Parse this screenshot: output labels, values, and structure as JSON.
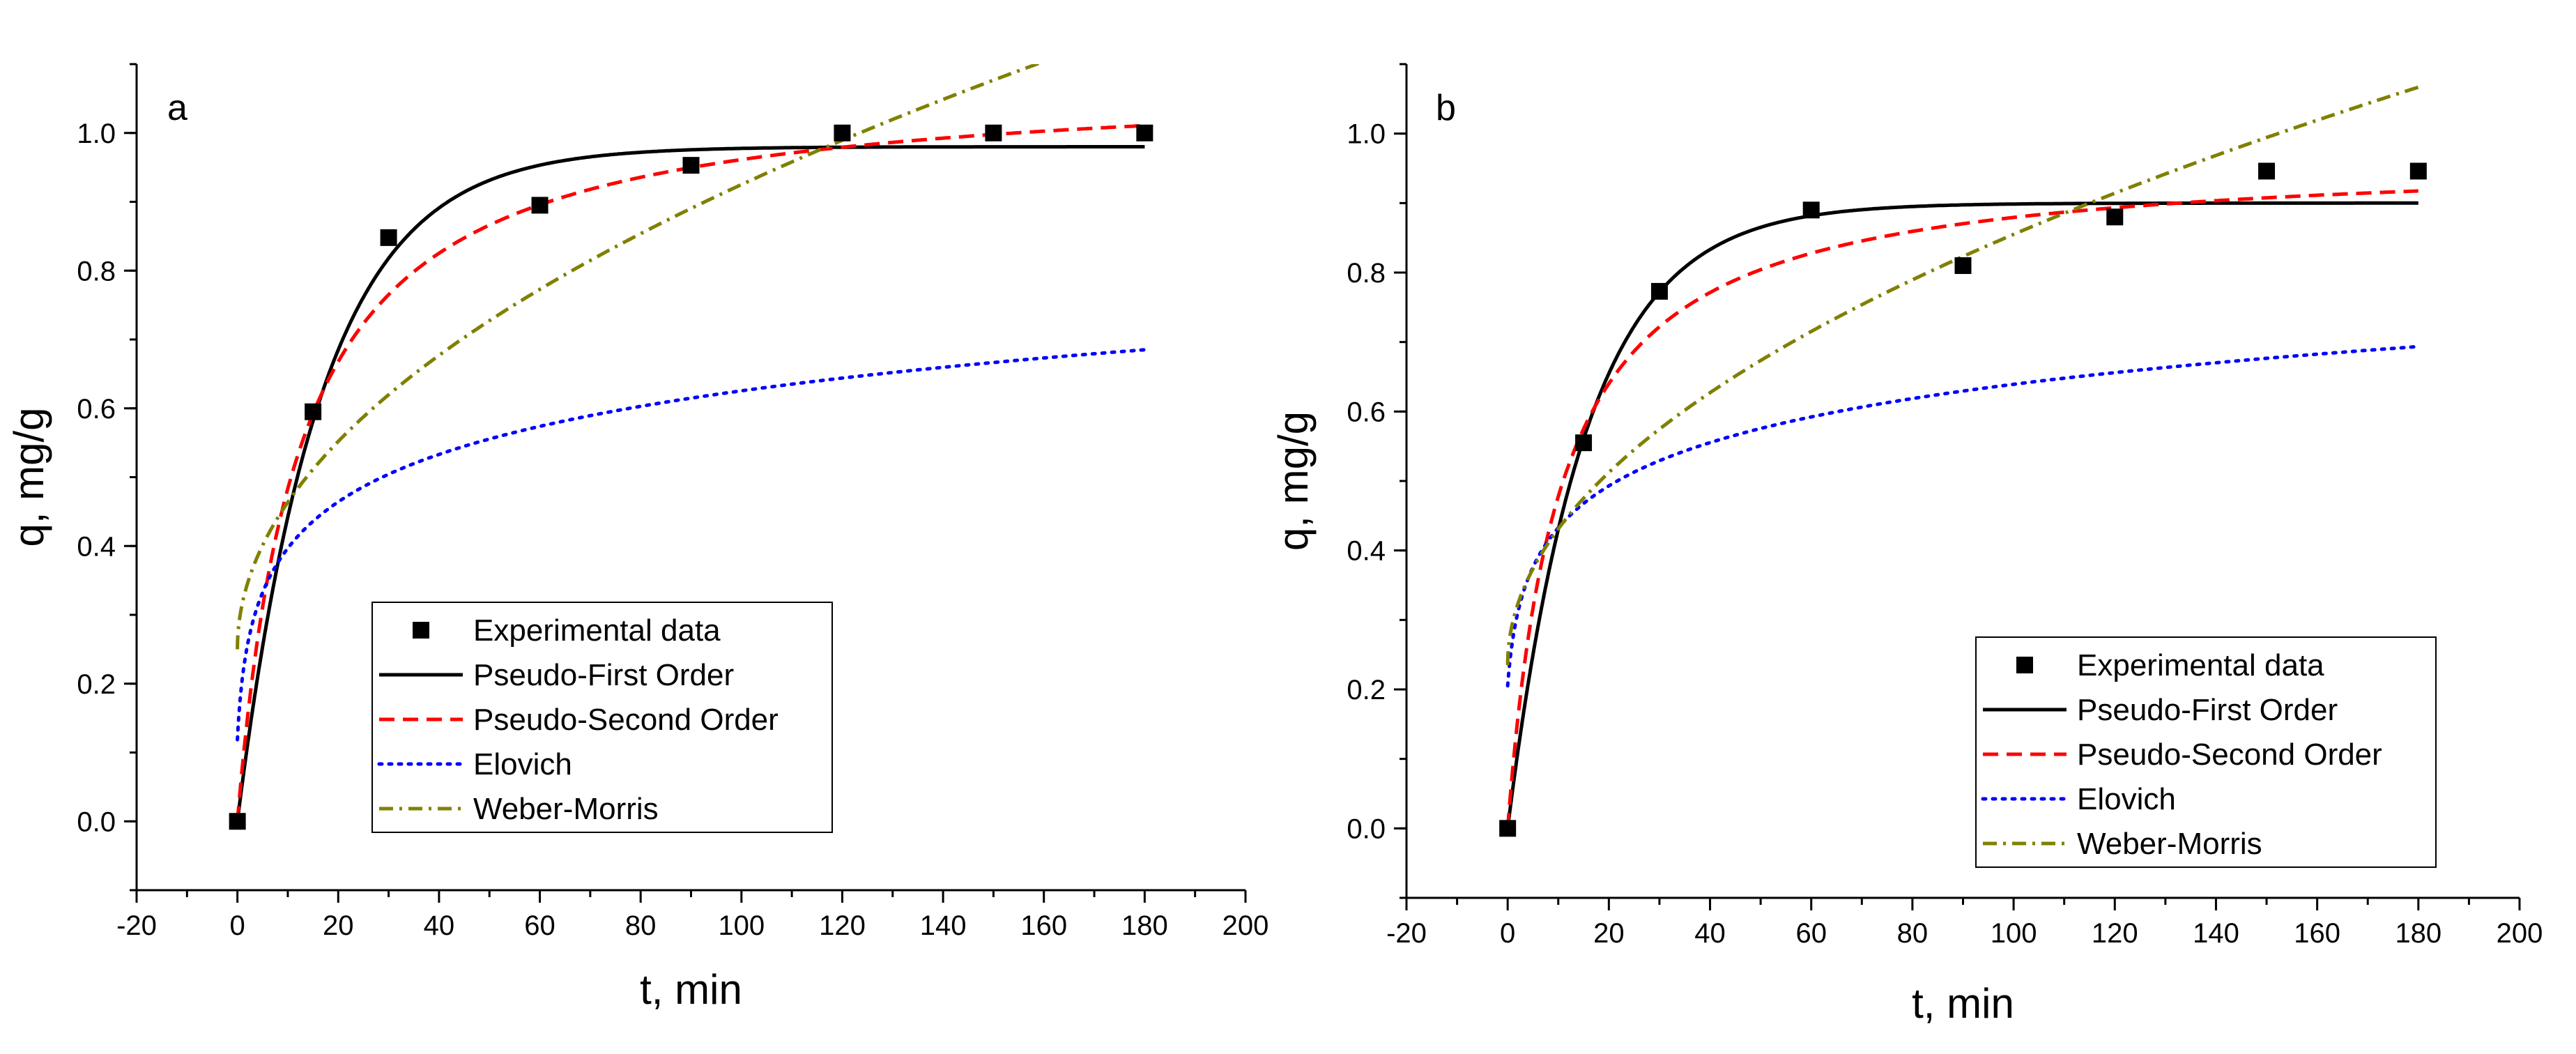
{
  "chart_data": [
    {
      "type": "scatter",
      "panel_label": "a",
      "xlabel": "t, min",
      "ylabel": "q, mg/g",
      "xlim": [
        -20,
        200
      ],
      "ylim": [
        -0.1,
        1.1
      ],
      "xticks": [
        -20,
        0,
        20,
        40,
        60,
        80,
        100,
        120,
        140,
        160,
        180,
        200
      ],
      "yticks": [
        0.0,
        0.2,
        0.4,
        0.6,
        0.8,
        1.0
      ],
      "xtick_labels": [
        "-20",
        "0",
        "20",
        "40",
        "60",
        "80",
        "100",
        "120",
        "140",
        "160",
        "180",
        "200"
      ],
      "ytick_labels": [
        "0.0",
        "0.2",
        "0.4",
        "0.6",
        "0.8",
        "1.0"
      ],
      "legend_position": "bottom-center",
      "series": [
        {
          "name": "Experimental data",
          "kind": "markers",
          "color": "#000000",
          "x": [
            0,
            15,
            30,
            60,
            90,
            120,
            150,
            180
          ],
          "y": [
            0.0,
            0.595,
            0.848,
            0.895,
            0.953,
            1.0,
            1.0,
            1.0
          ]
        },
        {
          "name": "Pseudo-First Order",
          "kind": "pfo",
          "color": "#000000",
          "dash": "solid",
          "params": {
            "qe": 0.98,
            "k": 0.06
          },
          "x_range": [
            0,
            180
          ]
        },
        {
          "name": "Pseudo-Second Order",
          "kind": "pso",
          "color": "#ff0000",
          "dash": "dashed",
          "params": {
            "qe": 1.08,
            "k": 0.075
          },
          "x_range": [
            0,
            180
          ]
        },
        {
          "name": "Elovich",
          "kind": "elovich",
          "color": "#0000ff",
          "dash": "dotted",
          "params": {
            "a": 0.155,
            "b": 0.102,
            "alpha": 0.7
          },
          "x_range": [
            0,
            180
          ]
        },
        {
          "name": "Weber-Morris",
          "kind": "wm",
          "color": "#808000",
          "dash": "dashdot",
          "params": {
            "c": 0.25,
            "k": 0.0675
          },
          "x_range": [
            0,
            160
          ]
        }
      ]
    },
    {
      "type": "scatter",
      "panel_label": "b",
      "xlabel": "t, min",
      "ylabel": "q, mg/g",
      "xlim": [
        -20,
        200
      ],
      "ylim": [
        -0.1,
        1.1
      ],
      "xticks": [
        -20,
        0,
        20,
        40,
        60,
        80,
        100,
        120,
        140,
        160,
        180,
        200
      ],
      "yticks": [
        0.0,
        0.2,
        0.4,
        0.6,
        0.8,
        1.0
      ],
      "xtick_labels": [
        "-20",
        "0",
        "20",
        "40",
        "60",
        "80",
        "100",
        "120",
        "140",
        "160",
        "180",
        "200"
      ],
      "ytick_labels": [
        "0.0",
        "0.2",
        "0.4",
        "0.6",
        "0.8",
        "1.0"
      ],
      "legend_position": "bottom-right",
      "series": [
        {
          "name": "Experimental data",
          "kind": "markers",
          "color": "#000000",
          "x": [
            0,
            15,
            30,
            60,
            90,
            120,
            150,
            180
          ],
          "y": [
            0.0,
            0.555,
            0.773,
            0.89,
            0.81,
            0.88,
            0.946,
            0.946
          ]
        },
        {
          "name": "Pseudo-First Order",
          "kind": "pfo",
          "color": "#000000",
          "dash": "solid",
          "params": {
            "qe": 0.9,
            "k": 0.065
          },
          "x_range": [
            0,
            180
          ]
        },
        {
          "name": "Pseudo-Second Order",
          "kind": "pso",
          "color": "#ff0000",
          "dash": "dashed",
          "params": {
            "qe": 0.97,
            "k": 0.1
          },
          "x_range": [
            0,
            180
          ]
        },
        {
          "name": "Elovich",
          "kind": "elovich",
          "color": "#0000ff",
          "dash": "dotted",
          "params": {
            "a": 0.21,
            "b": 0.093,
            "alpha": 0.95
          },
          "x_range": [
            0,
            180
          ]
        },
        {
          "name": "Weber-Morris",
          "kind": "wm",
          "color": "#808000",
          "dash": "dashdot",
          "params": {
            "c": 0.235,
            "k": 0.062
          },
          "x_range": [
            0,
            180
          ]
        }
      ]
    }
  ]
}
